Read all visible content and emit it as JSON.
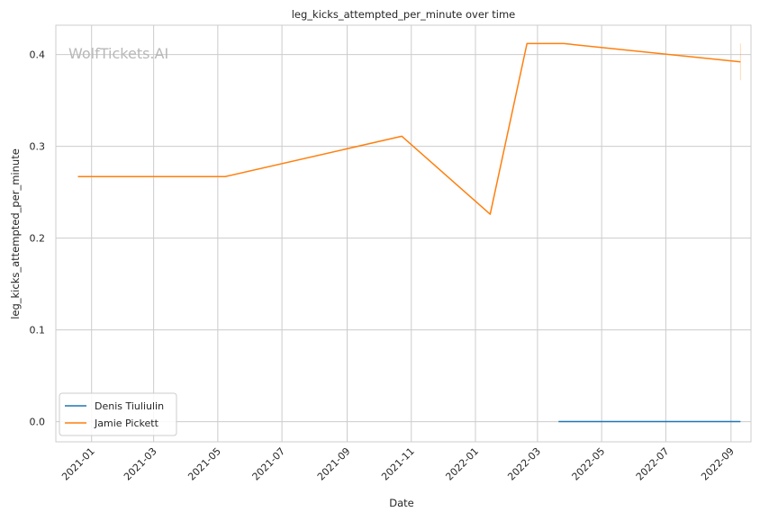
{
  "chart_data": {
    "type": "line",
    "title": "leg_kicks_attempted_per_minute over time",
    "xlabel": "Date",
    "ylabel": "leg_kicks_attempted_per_minute",
    "watermark": "WolfTickets.AI",
    "x_ticks": [
      "2021-01",
      "2021-03",
      "2021-05",
      "2021-07",
      "2021-09",
      "2021-11",
      "2022-01",
      "2022-03",
      "2022-05",
      "2022-07",
      "2022-09"
    ],
    "y_ticks": [
      "0.0",
      "0.1",
      "0.2",
      "0.3",
      "0.4"
    ],
    "xlim": [
      "2020-11-28",
      "2022-09-20"
    ],
    "ylim": [
      -0.022,
      0.432
    ],
    "grid": true,
    "legend_position": "lower-left",
    "series": [
      {
        "name": "Denis Tiuliulin",
        "color": "#1f77b4",
        "points": [
          {
            "x": "2022-03-21",
            "y": 0.0
          },
          {
            "x": "2022-09-10",
            "y": 0.0
          }
        ]
      },
      {
        "name": "Jamie Pickett",
        "color": "#ff7f0e",
        "points": [
          {
            "x": "2020-12-19",
            "y": 0.267
          },
          {
            "x": "2021-05-08",
            "y": 0.267
          },
          {
            "x": "2021-10-23",
            "y": 0.311
          },
          {
            "x": "2022-01-15",
            "y": 0.226
          },
          {
            "x": "2022-02-19",
            "y": 0.412
          },
          {
            "x": "2022-03-26",
            "y": 0.412
          },
          {
            "x": "2022-09-10",
            "y": 0.392
          }
        ],
        "error_band": {
          "x": "2022-09-10",
          "low": 0.372,
          "high": 0.412
        }
      }
    ]
  }
}
